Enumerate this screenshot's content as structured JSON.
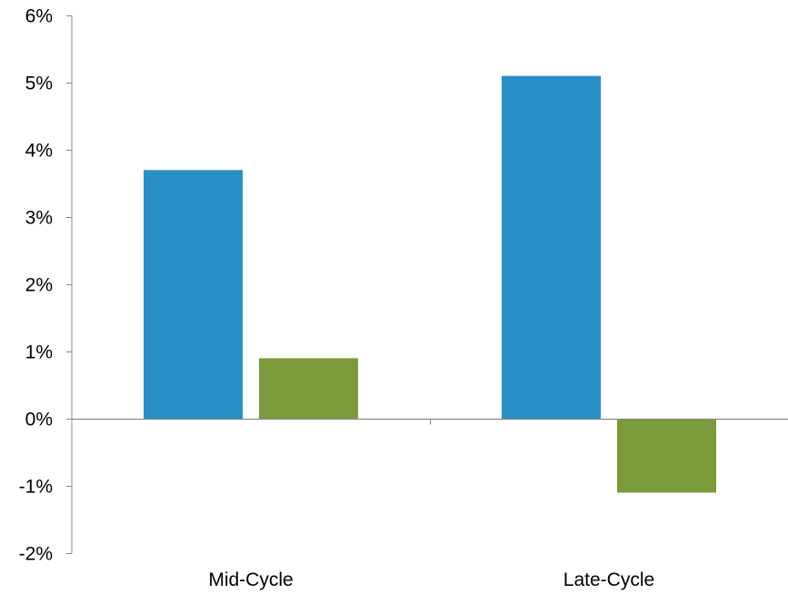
{
  "chart_data": {
    "type": "bar",
    "categories": [
      "Mid-Cycle",
      "Late-Cycle"
    ],
    "series": [
      {
        "values": [
          3.7,
          5.1
        ],
        "color": "#2a8fc4"
      },
      {
        "values": [
          0.9,
          -1.1
        ],
        "color": "#7a9a3c"
      }
    ],
    "ylim": [
      -2,
      6
    ],
    "yticks": [
      -2,
      -1,
      0,
      1,
      2,
      3,
      4,
      5,
      6
    ],
    "ytick_labels": [
      "-2%",
      "-1%",
      "0%",
      "1%",
      "2%",
      "3%",
      "4%",
      "5%",
      "6%"
    ],
    "xlabel": "",
    "ylabel": "",
    "title": "",
    "legend": "none",
    "grid": false
  },
  "colors": {
    "axis": "#888888"
  }
}
